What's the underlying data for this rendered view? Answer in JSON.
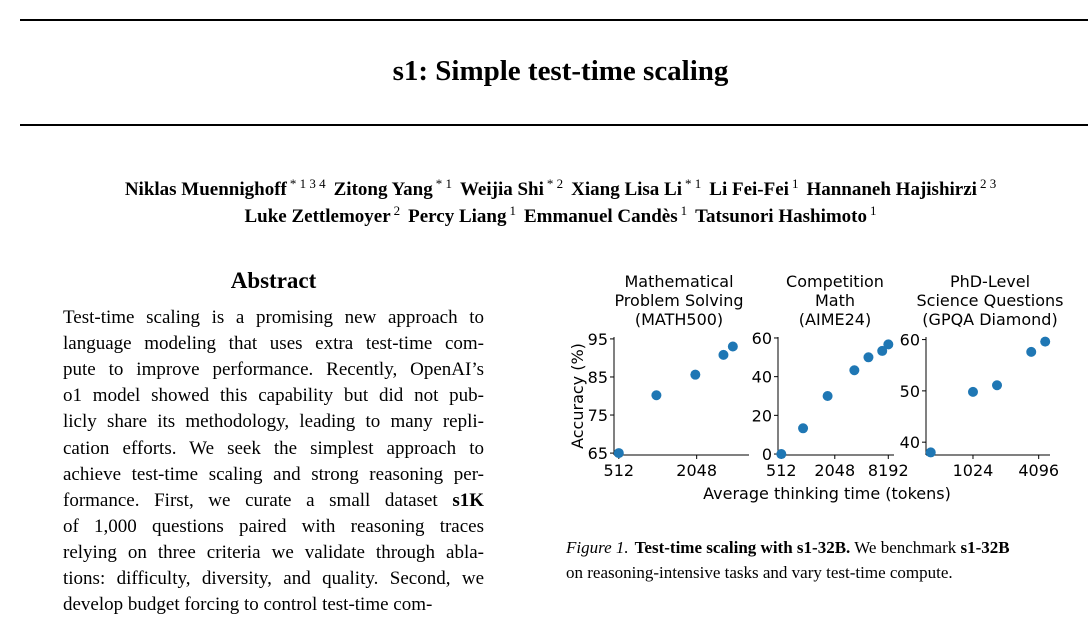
{
  "paper": {
    "title": "s1: Simple test-time scaling",
    "authors_line1": [
      {
        "name": "Niklas Muennighoff",
        "affil": "* 1 3 4"
      },
      {
        "name": "Zitong Yang",
        "affil": "* 1"
      },
      {
        "name": "Weijia Shi",
        "affil": "* 2"
      },
      {
        "name": "Xiang Lisa Li",
        "affil": "* 1"
      },
      {
        "name": "Li Fei-Fei",
        "affil": "1"
      },
      {
        "name": "Hannaneh Hajishirzi",
        "affil": "2 3"
      }
    ],
    "authors_line2": [
      {
        "name": "Luke Zettlemoyer",
        "affil": "2"
      },
      {
        "name": "Percy Liang",
        "affil": "1"
      },
      {
        "name": "Emmanuel Candès",
        "affil": "1"
      },
      {
        "name": "Tatsunori Hashimoto",
        "affil": "1"
      }
    ],
    "abstract_heading": "Abstract",
    "abstract_lines": [
      "Test-time scaling is a promising new approach to",
      "language modeling that uses extra test-time com-",
      "pute to improve performance. Recently, OpenAI’s",
      "o1 model showed this capability but did not pub-",
      "licly share its methodology, leading to many repli-",
      "cation efforts. We seek the simplest approach to",
      "achieve test-time scaling and strong reasoning per-",
      "formance. First, we curate a small dataset |s1K|",
      "of 1,000 questions paired with reasoning traces",
      "relying on three criteria we validate through abla-",
      "tions: difficulty, diversity, and quality. Second, we",
      "develop budget forcing to control test-time com-"
    ],
    "figure_caption": {
      "label": "Figure 1.",
      "bold_title": "Test-time scaling with s1-32B.",
      "text_a": " We benchmark ",
      "bold_model": "s1-32B",
      "line2": "on reasoning-intensive tasks and vary test-time compute."
    }
  },
  "chart_data": [
    {
      "type": "scatter",
      "title": "Mathematical Problem Solving (MATH500)",
      "title_lines": [
        "Mathematical",
        "Problem Solving",
        "(MATH500)"
      ],
      "ylabel": "Accuracy (%)",
      "x_scale": "log2",
      "xlim": [
        470,
        5200
      ],
      "ylim": [
        64.5,
        95.5
      ],
      "xticks": [
        512,
        2048
      ],
      "yticks": [
        65,
        75,
        85,
        95
      ],
      "x": [
        512,
        1000,
        2000,
        3300,
        3900
      ],
      "y": [
        65,
        80.2,
        85.6,
        90.8,
        93
      ]
    },
    {
      "type": "scatter",
      "title": "Competition Math (AIME24)",
      "title_lines": [
        "Competition",
        "Math",
        "(AIME24)"
      ],
      "xlabel": "Average thinking time (tokens)",
      "x_scale": "log2",
      "xlim": [
        470,
        9500
      ],
      "ylim": [
        -0.5,
        60.5
      ],
      "xticks": [
        512,
        2048,
        8192
      ],
      "yticks": [
        0,
        20,
        40,
        60
      ],
      "x": [
        512,
        900,
        1700,
        3400,
        4900,
        7000,
        8200
      ],
      "y": [
        0,
        13.3,
        30,
        43.3,
        50,
        53.3,
        56.7
      ]
    },
    {
      "type": "scatter",
      "title": "PhD-Level Science Questions (GPQA Diamond)",
      "title_lines": [
        "PhD-Level",
        "Science Questions",
        "(GPQA Diamond)"
      ],
      "x_scale": "log2",
      "xlim": [
        380,
        5200
      ],
      "ylim": [
        37.5,
        60.5
      ],
      "xticks": [
        1024,
        4096
      ],
      "yticks": [
        40,
        50,
        60
      ],
      "x": [
        420,
        1024,
        1700,
        3500,
        4700
      ],
      "y": [
        38,
        49.8,
        51.1,
        57.6,
        59.6
      ]
    }
  ],
  "colors": {
    "marker": "#1f77b4",
    "text": "#000000"
  }
}
